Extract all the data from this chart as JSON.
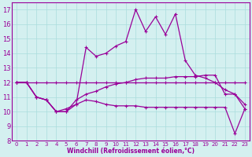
{
  "xlabel": "Windchill (Refroidissement éolien,°C)",
  "x": [
    0,
    1,
    2,
    3,
    4,
    5,
    6,
    7,
    8,
    9,
    10,
    11,
    12,
    13,
    14,
    15,
    16,
    17,
    18,
    19,
    20,
    21,
    22,
    23
  ],
  "line_flat": [
    12,
    12,
    12,
    12,
    12,
    12,
    12,
    12,
    12,
    12,
    12,
    12,
    12,
    12,
    12,
    12,
    12,
    12,
    12,
    12,
    12,
    12,
    12,
    12
  ],
  "line_spike": [
    12,
    12,
    11,
    10.8,
    10,
    10,
    10.5,
    14.4,
    13.8,
    14.0,
    14.5,
    14.8,
    17.0,
    15.5,
    16.5,
    15.3,
    16.7,
    13.5,
    12.5,
    12.3,
    12.0,
    11.5,
    11.2,
    10.5
  ],
  "line_mid": [
    12,
    12,
    11,
    10.8,
    10,
    10,
    10.8,
    11.2,
    11.4,
    11.7,
    11.9,
    12.0,
    12.2,
    12.3,
    12.3,
    12.3,
    12.4,
    12.4,
    12.4,
    12.5,
    12.5,
    11.2,
    11.2,
    10.2
  ],
  "line_low": [
    12,
    12,
    11,
    10.8,
    10,
    10.2,
    10.5,
    10.8,
    10.7,
    10.5,
    10.4,
    10.4,
    10.4,
    10.3,
    10.3,
    10.3,
    10.3,
    10.3,
    10.3,
    10.3,
    10.3,
    10.3,
    8.5,
    10.2
  ],
  "bg_color": "#d4f0f0",
  "line_color": "#990099",
  "grid_color": "#aadddd",
  "ylim": [
    8,
    17.5
  ],
  "xlim": [
    -0.5,
    23.5
  ],
  "yticks": [
    8,
    9,
    10,
    11,
    12,
    13,
    14,
    15,
    16,
    17
  ],
  "xticks": [
    0,
    1,
    2,
    3,
    4,
    5,
    6,
    7,
    8,
    9,
    10,
    11,
    12,
    13,
    14,
    15,
    16,
    17,
    18,
    19,
    20,
    21,
    22,
    23
  ]
}
